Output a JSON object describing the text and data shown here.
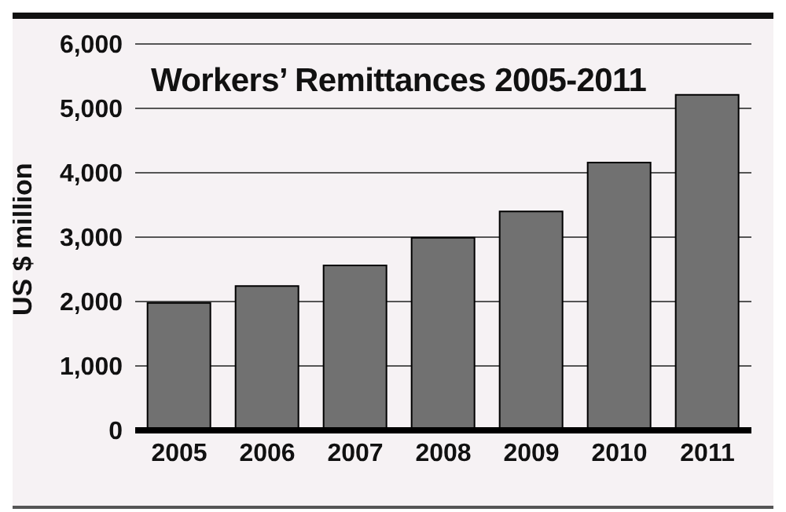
{
  "chart_data": {
    "type": "bar",
    "title": "Workers’ Remittances 2005-2011",
    "ylabel": "US $ million",
    "categories": [
      "2005",
      "2006",
      "2007",
      "2008",
      "2009",
      "2010",
      "2011"
    ],
    "values": [
      1980,
      2240,
      2560,
      2990,
      3400,
      4160,
      5210
    ],
    "color": "#717171",
    "ylim": [
      0,
      6000
    ],
    "yticks": [
      0,
      {
        "value": 1000,
        "label": "1,000"
      },
      {
        "value": 2000,
        "label": "2,000"
      },
      {
        "value": 3000,
        "label": "3,000"
      },
      {
        "value": 4000,
        "label": "4,000"
      },
      {
        "value": 5000,
        "label": "5,000"
      },
      {
        "value": 6000,
        "label": "6,000"
      }
    ],
    "grid": "y"
  }
}
